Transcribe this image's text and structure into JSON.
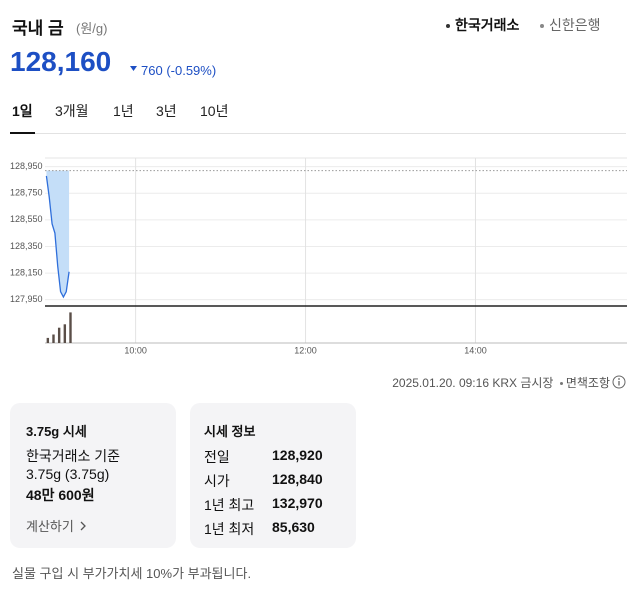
{
  "header": {
    "title": "국내 금",
    "unit": "(원/g)",
    "sources": [
      "한국거래소",
      "신한은행"
    ],
    "price": "128,160",
    "change": "760",
    "change_pct": "(-0.59%)"
  },
  "periods": [
    "1일",
    "3개월",
    "1년",
    "3년",
    "10년"
  ],
  "chart_data": {
    "type": "line",
    "x": [
      537,
      539,
      541,
      543,
      545,
      547,
      549,
      551,
      553
    ],
    "values": [
      128880,
      128720,
      128520,
      128450,
      128200,
      128010,
      127970,
      128010,
      128160
    ],
    "color": "#2f6fdb",
    "fill": "#c4def8",
    "baseline": 128920,
    "xlim": [
      536,
      947
    ],
    "xticks": [
      {
        "value": 600,
        "label": "10:00"
      },
      {
        "value": 720,
        "label": "12:00"
      },
      {
        "value": 840,
        "label": "14:00"
      }
    ],
    "ylim": [
      127910,
      129000
    ],
    "yticks": [
      {
        "value": 127950,
        "label": "127,950"
      },
      {
        "value": 128150,
        "label": "128,150"
      },
      {
        "value": 128350,
        "label": "128,350"
      },
      {
        "value": 128550,
        "label": "128,550"
      },
      {
        "value": 128750,
        "label": "128,750"
      },
      {
        "value": 128950,
        "label": "128,950"
      }
    ],
    "grid": true,
    "volume": {
      "x": [
        538,
        542,
        546,
        550,
        554
      ],
      "values": [
        15,
        25,
        45,
        55,
        90
      ],
      "ylim": [
        0,
        100
      ],
      "color": "#5a4e48"
    }
  },
  "meta": {
    "timestamp": "2025.01.20. 09:16",
    "market": "KRX 금시장",
    "disclaimer": "면책조항"
  },
  "card_weight": {
    "title": "3.75g 시세",
    "basis": "한국거래소 기준",
    "weight": "3.75g (3.75g)",
    "price": "48만 600원",
    "link": "계산하기"
  },
  "card_info": {
    "title": "시세 정보",
    "rows": [
      [
        "전일",
        "128,920"
      ],
      [
        "시가",
        "128,840"
      ],
      [
        "1년 최고",
        "132,970"
      ],
      [
        "1년 최저",
        "85,630"
      ]
    ]
  },
  "footer": "실물 구입 시 부가가치세 10%가 부과됩니다."
}
